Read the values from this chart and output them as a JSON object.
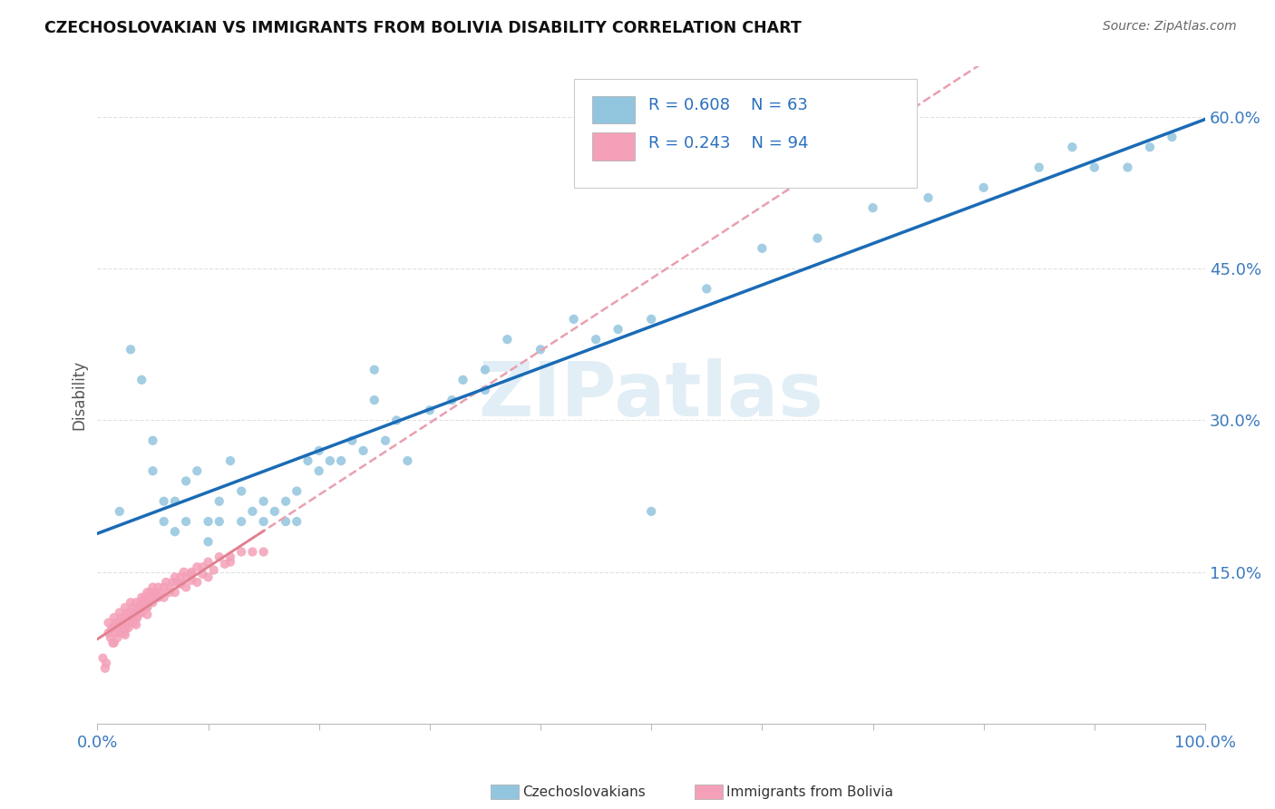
{
  "title": "CZECHOSLOVAKIAN VS IMMIGRANTS FROM BOLIVIA DISABILITY CORRELATION CHART",
  "source": "Source: ZipAtlas.com",
  "ylabel": "Disability",
  "xlim": [
    0,
    1.0
  ],
  "ylim": [
    0,
    0.65
  ],
  "x_ticks": [
    0.0,
    0.1,
    0.2,
    0.3,
    0.4,
    0.5,
    0.6,
    0.7,
    0.8,
    0.9,
    1.0
  ],
  "x_tick_labels": [
    "0.0%",
    "",
    "",
    "",
    "",
    "",
    "",
    "",
    "",
    "",
    "100.0%"
  ],
  "y_ticks": [
    0.15,
    0.3,
    0.45,
    0.6
  ],
  "y_tick_labels": [
    "15.0%",
    "30.0%",
    "45.0%",
    "60.0%"
  ],
  "blue_color": "#92c5de",
  "pink_color": "#f4a0b8",
  "blue_line_color": "#1a6bb5",
  "pink_line_color": "#e08090",
  "pink_dash_color": "#e8a0b0",
  "watermark": "ZIPatlas",
  "blue_scatter_x": [
    0.02,
    0.03,
    0.04,
    0.05,
    0.05,
    0.06,
    0.06,
    0.07,
    0.07,
    0.08,
    0.08,
    0.09,
    0.1,
    0.1,
    0.11,
    0.11,
    0.12,
    0.13,
    0.13,
    0.14,
    0.15,
    0.15,
    0.16,
    0.17,
    0.17,
    0.18,
    0.18,
    0.19,
    0.2,
    0.2,
    0.21,
    0.22,
    0.23,
    0.24,
    0.25,
    0.26,
    0.27,
    0.28,
    0.3,
    0.32,
    0.33,
    0.35,
    0.37,
    0.4,
    0.43,
    0.45,
    0.47,
    0.5,
    0.55,
    0.6,
    0.65,
    0.7,
    0.75,
    0.8,
    0.85,
    0.88,
    0.9,
    0.93,
    0.95,
    0.97,
    0.25,
    0.35,
    0.5
  ],
  "blue_scatter_y": [
    0.21,
    0.37,
    0.34,
    0.28,
    0.25,
    0.22,
    0.2,
    0.22,
    0.19,
    0.24,
    0.2,
    0.25,
    0.2,
    0.18,
    0.22,
    0.2,
    0.26,
    0.23,
    0.2,
    0.21,
    0.22,
    0.2,
    0.21,
    0.22,
    0.2,
    0.23,
    0.2,
    0.26,
    0.27,
    0.25,
    0.26,
    0.26,
    0.28,
    0.27,
    0.35,
    0.28,
    0.3,
    0.26,
    0.31,
    0.32,
    0.34,
    0.35,
    0.38,
    0.37,
    0.4,
    0.38,
    0.39,
    0.4,
    0.43,
    0.47,
    0.48,
    0.51,
    0.52,
    0.53,
    0.55,
    0.57,
    0.55,
    0.55,
    0.57,
    0.58,
    0.32,
    0.33,
    0.21
  ],
  "pink_scatter_x": [
    0.005,
    0.007,
    0.008,
    0.01,
    0.01,
    0.012,
    0.013,
    0.014,
    0.015,
    0.015,
    0.016,
    0.017,
    0.018,
    0.019,
    0.02,
    0.02,
    0.021,
    0.022,
    0.023,
    0.024,
    0.025,
    0.025,
    0.026,
    0.027,
    0.028,
    0.029,
    0.03,
    0.03,
    0.031,
    0.032,
    0.033,
    0.034,
    0.035,
    0.036,
    0.037,
    0.038,
    0.039,
    0.04,
    0.04,
    0.042,
    0.043,
    0.044,
    0.045,
    0.046,
    0.047,
    0.048,
    0.05,
    0.052,
    0.053,
    0.055,
    0.057,
    0.06,
    0.062,
    0.065,
    0.068,
    0.07,
    0.072,
    0.075,
    0.078,
    0.08,
    0.085,
    0.09,
    0.095,
    0.1,
    0.11,
    0.12,
    0.13,
    0.14,
    0.015,
    0.02,
    0.025,
    0.03,
    0.035,
    0.04,
    0.045,
    0.05,
    0.06,
    0.07,
    0.08,
    0.09,
    0.1,
    0.055,
    0.065,
    0.075,
    0.085,
    0.095,
    0.105,
    0.115,
    0.025,
    0.035,
    0.045,
    0.15,
    0.12,
    0.085
  ],
  "pink_scatter_y": [
    0.065,
    0.055,
    0.06,
    0.1,
    0.09,
    0.085,
    0.095,
    0.08,
    0.105,
    0.095,
    0.09,
    0.1,
    0.085,
    0.095,
    0.11,
    0.1,
    0.095,
    0.105,
    0.1,
    0.09,
    0.115,
    0.105,
    0.1,
    0.11,
    0.095,
    0.105,
    0.12,
    0.11,
    0.105,
    0.115,
    0.1,
    0.11,
    0.12,
    0.105,
    0.115,
    0.11,
    0.12,
    0.125,
    0.115,
    0.12,
    0.125,
    0.115,
    0.13,
    0.12,
    0.125,
    0.13,
    0.135,
    0.125,
    0.13,
    0.135,
    0.13,
    0.135,
    0.14,
    0.135,
    0.14,
    0.145,
    0.14,
    0.145,
    0.15,
    0.145,
    0.15,
    0.155,
    0.155,
    0.16,
    0.165,
    0.165,
    0.17,
    0.17,
    0.08,
    0.09,
    0.095,
    0.1,
    0.105,
    0.11,
    0.115,
    0.12,
    0.125,
    0.13,
    0.135,
    0.14,
    0.145,
    0.125,
    0.13,
    0.138,
    0.142,
    0.148,
    0.152,
    0.158,
    0.088,
    0.098,
    0.108,
    0.17,
    0.16,
    0.148
  ],
  "grid_color": "#e0e0e0",
  "background_color": "#ffffff"
}
